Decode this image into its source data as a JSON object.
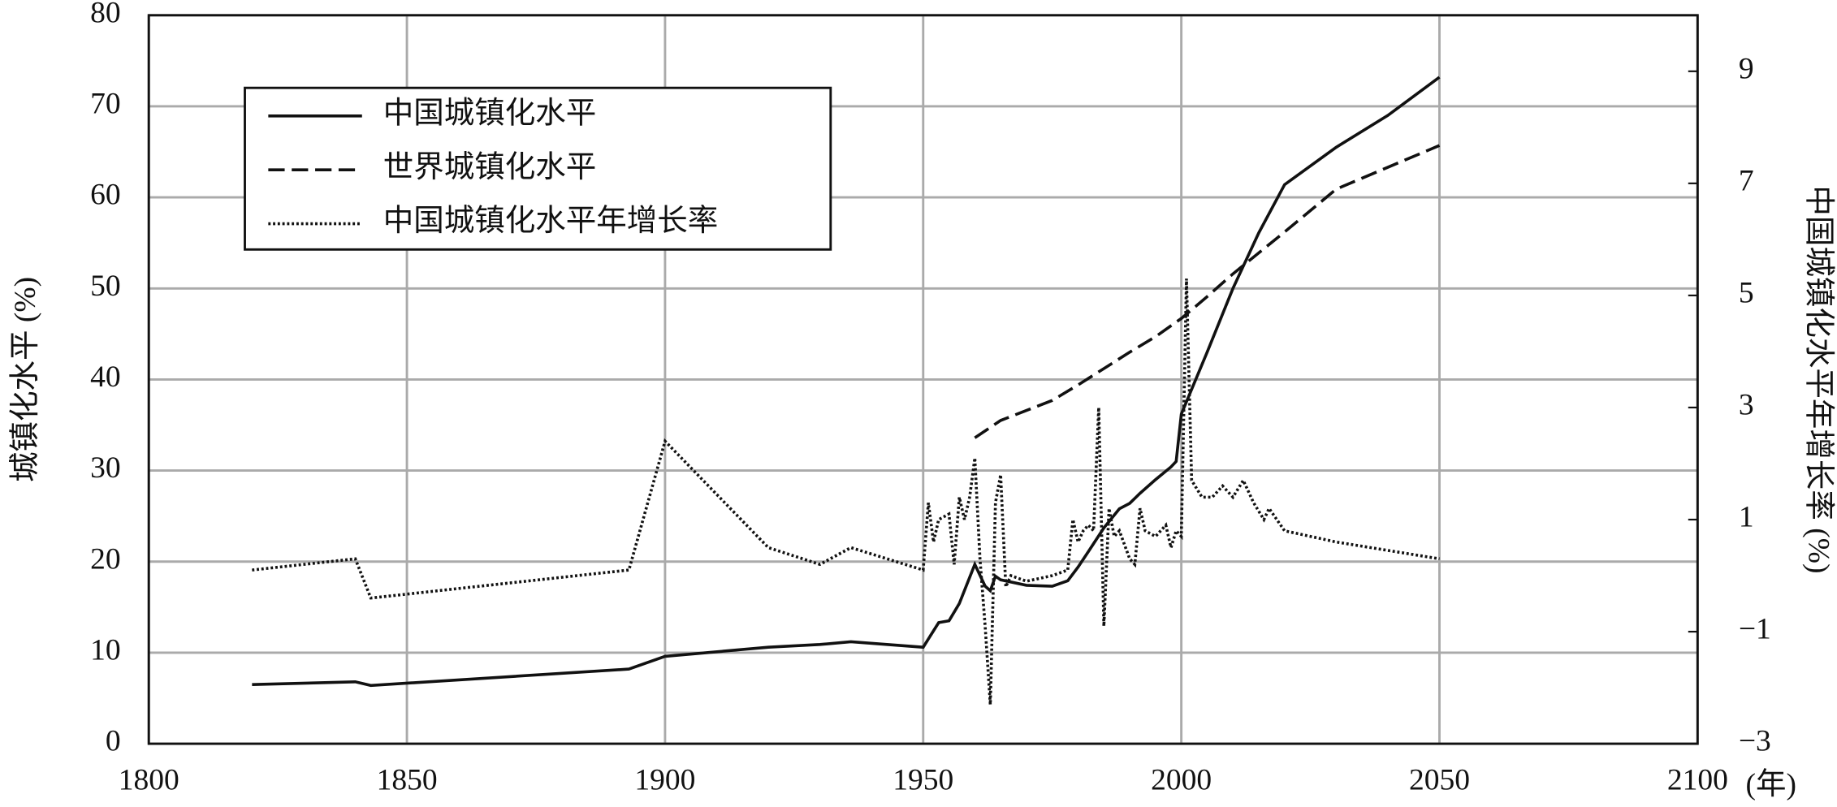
{
  "chart_data": {
    "type": "line",
    "x_label": "(年)",
    "y_label": "城镇化水平 (%)",
    "y2_label": "中国城镇化水平年增长率 (%)",
    "xlim": [
      1800,
      2100
    ],
    "xticks": [
      1800,
      1850,
      1900,
      1950,
      2000,
      2050,
      2100
    ],
    "ylim": [
      0,
      80
    ],
    "yticks": [
      0,
      10,
      20,
      30,
      40,
      50,
      60,
      70,
      80
    ],
    "y2lim": [
      -3,
      10
    ],
    "y2ticks": [
      {
        "value": -3,
        "label": "−3"
      },
      {
        "value": -1,
        "label": "−1"
      },
      1,
      3,
      5,
      7,
      9
    ],
    "grid": true,
    "legend": "upper left",
    "series": [
      {
        "name": "中国城镇化水平",
        "color": "#111111",
        "line_style": "solid",
        "x": [
          1820,
          1840,
          1843,
          1893,
          1900,
          1920,
          1930,
          1936,
          1950,
          1953,
          1955,
          1957,
          1960,
          1962,
          1963,
          1964,
          1965,
          1970,
          1975,
          1978,
          1980,
          1982,
          1985,
          1988,
          1990,
          1992,
          1993,
          1995,
          1998,
          1999,
          2000,
          2005,
          2010,
          2015,
          2020,
          2030,
          2040,
          2050
        ],
        "values": [
          6.5,
          6.8,
          6.4,
          8.2,
          9.6,
          10.6,
          10.9,
          11.2,
          10.6,
          13.3,
          13.5,
          15.4,
          19.7,
          17.3,
          16.8,
          18.4,
          18.0,
          17.4,
          17.3,
          17.9,
          19.4,
          21.1,
          23.7,
          25.8,
          26.4,
          27.5,
          28.0,
          29.0,
          30.4,
          31.0,
          36.2,
          43.0,
          50.0,
          56.1,
          61.4,
          65.5,
          69.0,
          73.2
        ]
      },
      {
        "name": "世界城镇化水平",
        "color": "#111111",
        "line_style": "dashed",
        "x": [
          1960,
          1965,
          1970,
          1975,
          1980,
          1985,
          1990,
          1995,
          2000,
          2005,
          2010,
          2015,
          2020,
          2030,
          2050
        ],
        "values": [
          33.6,
          35.5,
          36.6,
          37.7,
          39.4,
          41.2,
          43.0,
          44.7,
          46.7,
          49.1,
          51.6,
          53.9,
          56.2,
          60.9,
          65.7
        ]
      },
      {
        "name": "中国城镇化水平年增长率",
        "color": "#111111",
        "line_style": "dotted",
        "axis": "y2",
        "x": [
          1820,
          1840,
          1843,
          1893,
          1900,
          1920,
          1930,
          1936,
          1950,
          1951,
          1952,
          1953,
          1955,
          1956,
          1957,
          1958,
          1959,
          1960,
          1961,
          1962,
          1963,
          1964,
          1965,
          1966,
          1967,
          1970,
          1975,
          1978,
          1979,
          1980,
          1981,
          1982,
          1983,
          1984,
          1985,
          1986,
          1987,
          1988,
          1990,
          1991,
          1992,
          1993,
          1995,
          1997,
          1998,
          1999,
          2000,
          2001,
          2002,
          2004,
          2006,
          2008,
          2010,
          2012,
          2014,
          2016,
          2017,
          2020,
          2030,
          2050
        ],
        "values": [
          0.1,
          0.3,
          -0.4,
          0.1,
          2.4,
          0.5,
          0.2,
          0.5,
          0.1,
          1.3,
          0.6,
          1.0,
          1.1,
          0.2,
          1.4,
          1.0,
          1.4,
          2.1,
          0.3,
          -0.9,
          -2.3,
          1.3,
          1.8,
          -0.2,
          0.0,
          -0.1,
          0.0,
          0.1,
          1.0,
          0.6,
          0.8,
          0.9,
          0.8,
          3.0,
          -0.9,
          1.2,
          0.7,
          0.8,
          0.3,
          0.2,
          1.2,
          0.8,
          0.7,
          0.9,
          0.5,
          0.8,
          0.7,
          5.3,
          1.7,
          1.4,
          1.4,
          1.6,
          1.4,
          1.7,
          1.3,
          1.0,
          1.2,
          0.8,
          0.6,
          0.3
        ]
      }
    ]
  }
}
